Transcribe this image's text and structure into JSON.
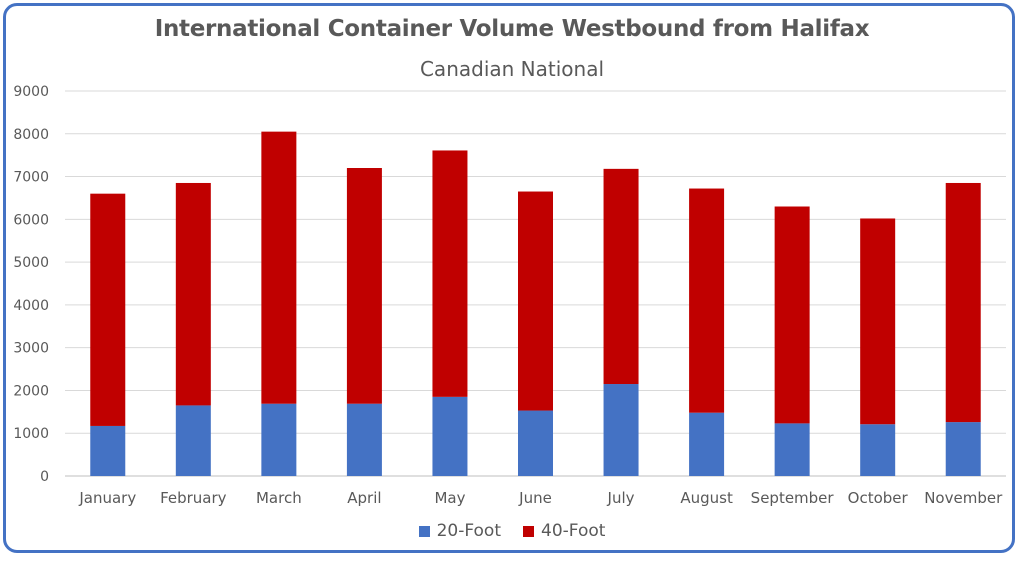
{
  "chart_data": {
    "type": "bar",
    "stacked": true,
    "title": "International Container Volume Westbound from Halifax",
    "subtitle": "Canadian National",
    "categories": [
      "January",
      "February",
      "March",
      "April",
      "May",
      "June",
      "July",
      "August",
      "September",
      "October",
      "November"
    ],
    "series": [
      {
        "name": "20-Foot",
        "color": "#4472c4",
        "values": [
          1170,
          1650,
          1690,
          1690,
          1850,
          1530,
          2150,
          1480,
          1230,
          1210,
          1260
        ]
      },
      {
        "name": "40-Foot",
        "color": "#c00000",
        "values": [
          5430,
          5200,
          6360,
          5510,
          5760,
          5120,
          5030,
          5240,
          5070,
          4810,
          5590
        ]
      }
    ],
    "ylim": [
      0,
      9000
    ],
    "yticks": [
      0,
      1000,
      2000,
      3000,
      4000,
      5000,
      6000,
      7000,
      8000,
      9000
    ],
    "xlabel": "",
    "ylabel": "",
    "grid": true,
    "legend": "bottom",
    "border_color": "#4472c4"
  }
}
